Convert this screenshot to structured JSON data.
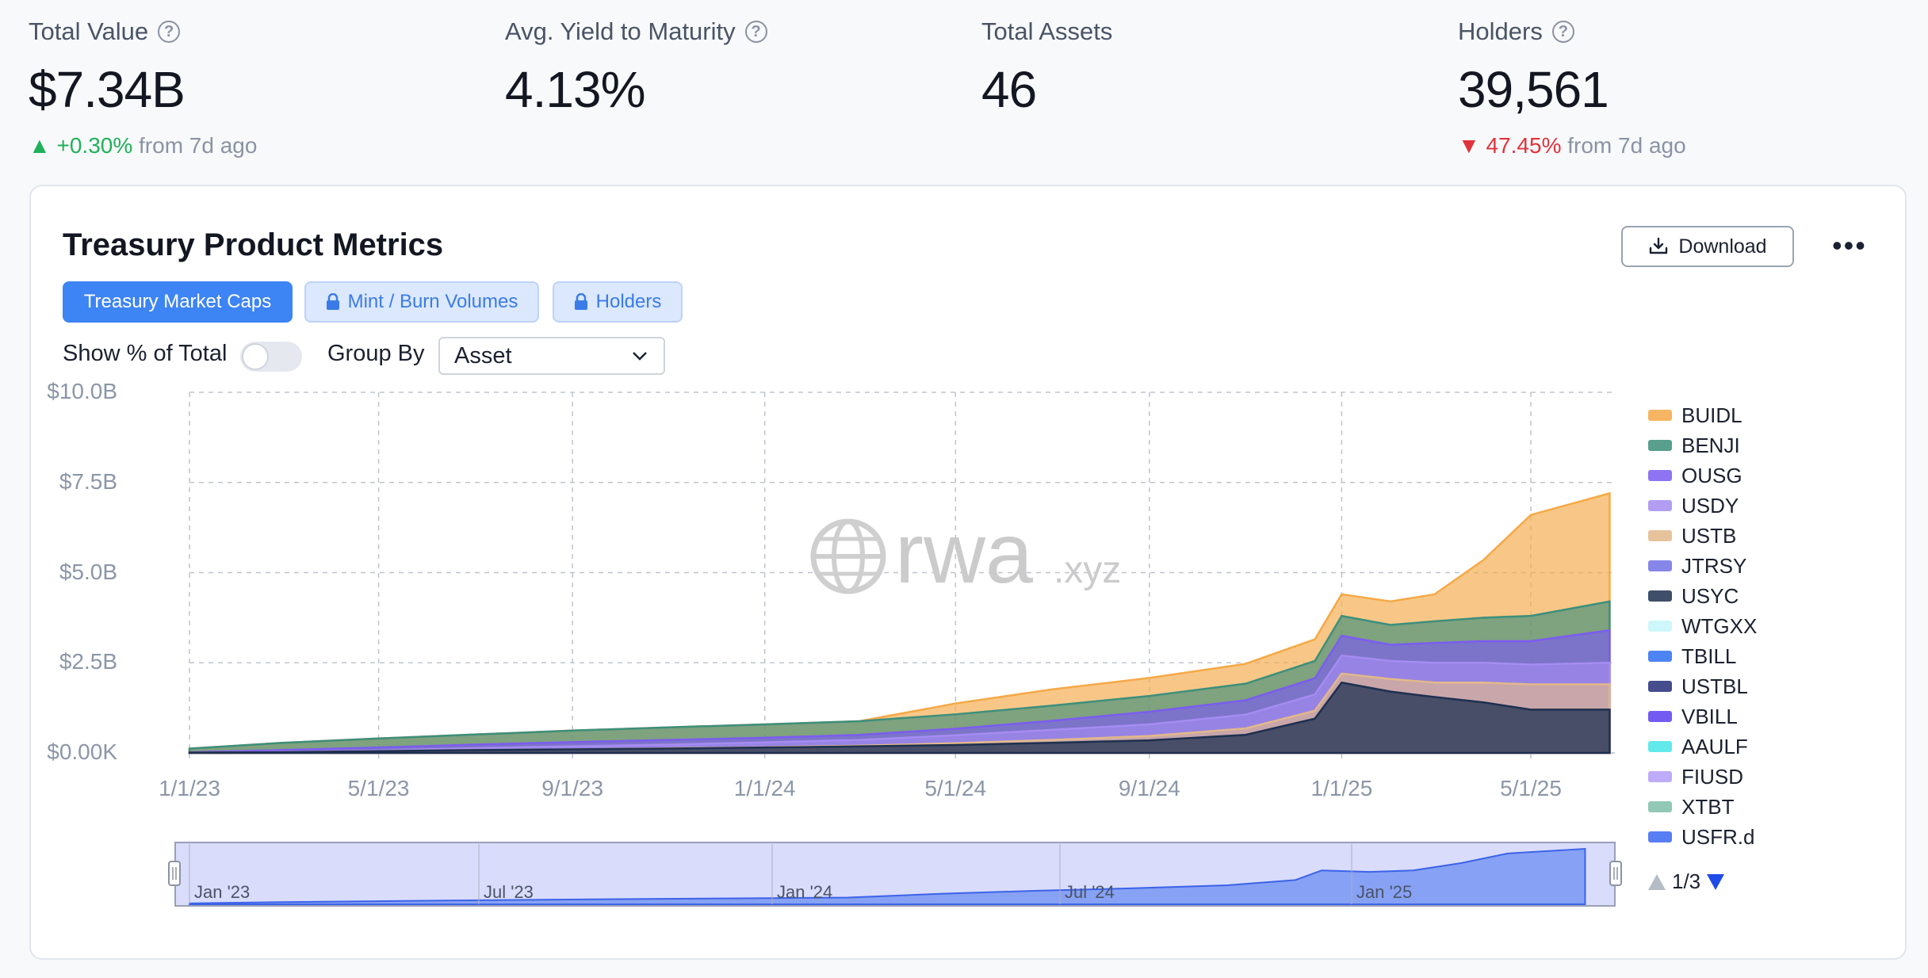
{
  "stats": [
    {
      "label": "Total Value",
      "value": "$7.34B",
      "change": "+0.30%",
      "change_dir": "up",
      "change_suffix": "from 7d ago",
      "has_help": true
    },
    {
      "label": "Avg. Yield to Maturity",
      "value": "4.13%",
      "has_help": true
    },
    {
      "label": "Total Assets",
      "value": "46",
      "has_help": false
    },
    {
      "label": "Holders",
      "value": "39,561",
      "change": "47.45%",
      "change_dir": "down",
      "change_suffix": "from 7d ago",
      "has_help": true
    }
  ],
  "card": {
    "title": "Treasury Product Metrics",
    "download_label": "Download",
    "more_label": "•••",
    "tabs": [
      "Treasury Market Caps",
      "Mint / Burn Volumes",
      "Holders"
    ],
    "show_pct_label": "Show % of Total",
    "group_by_label": "Group By",
    "group_by_value": "Asset",
    "watermark_main": "rwa",
    "watermark_suffix": ".xyz",
    "pager": "1/3",
    "navigator_labels": [
      "Jan '23",
      "Jul '23",
      "Jan '24",
      "Jul '24",
      "Jan '25"
    ]
  },
  "chart_data": {
    "type": "area",
    "stacked": true,
    "x": [
      "1/1/23",
      "3/1/23",
      "5/1/23",
      "7/1/23",
      "9/1/23",
      "11/1/23",
      "1/1/24",
      "3/1/24",
      "5/1/24",
      "7/1/24",
      "9/1/24",
      "11/1/24",
      "12/15/24",
      "1/1/25",
      "2/1/25",
      "3/1/25",
      "4/1/25",
      "5/1/25",
      "6/20/25"
    ],
    "x_tick_labels": [
      "1/1/23",
      "5/1/23",
      "9/1/23",
      "1/1/24",
      "5/1/24",
      "9/1/24",
      "1/1/25",
      "5/1/25"
    ],
    "y_tick_labels": [
      "$0.00K",
      "$2.5B",
      "$5.0B",
      "$7.5B",
      "$10.0B"
    ],
    "ylim": [
      0,
      10
    ],
    "y_unit": "B",
    "grid": true,
    "legend_position": "right",
    "series": [
      {
        "name": "USYC",
        "color": "#1e3050",
        "values": [
          0.01,
          0.02,
          0.05,
          0.08,
          0.1,
          0.12,
          0.15,
          0.18,
          0.22,
          0.28,
          0.35,
          0.5,
          0.95,
          1.95,
          1.7,
          1.55,
          1.4,
          1.2,
          1.2
        ]
      },
      {
        "name": "USTB",
        "color": "#e3b98a",
        "values": [
          0.0,
          0.0,
          0.0,
          0.0,
          0.0,
          0.01,
          0.01,
          0.02,
          0.05,
          0.08,
          0.12,
          0.18,
          0.22,
          0.25,
          0.35,
          0.4,
          0.55,
          0.7,
          0.7
        ]
      },
      {
        "name": "USDY",
        "color": "#a58cf2",
        "values": [
          0.0,
          0.01,
          0.02,
          0.05,
          0.08,
          0.1,
          0.13,
          0.16,
          0.22,
          0.28,
          0.32,
          0.38,
          0.45,
          0.5,
          0.5,
          0.55,
          0.55,
          0.55,
          0.6
        ]
      },
      {
        "name": "OUSG",
        "color": "#7b5cf0",
        "values": [
          0.01,
          0.05,
          0.08,
          0.1,
          0.12,
          0.13,
          0.13,
          0.14,
          0.18,
          0.25,
          0.35,
          0.4,
          0.45,
          0.55,
          0.45,
          0.55,
          0.6,
          0.65,
          0.9
        ]
      },
      {
        "name": "BENJI",
        "color": "#3d8f7b",
        "values": [
          0.1,
          0.2,
          0.25,
          0.28,
          0.32,
          0.35,
          0.37,
          0.38,
          0.4,
          0.42,
          0.44,
          0.46,
          0.48,
          0.55,
          0.55,
          0.6,
          0.65,
          0.7,
          0.8
        ]
      },
      {
        "name": "BUIDL",
        "color": "#f5a947",
        "values": [
          0.0,
          0.0,
          0.0,
          0.0,
          0.0,
          0.0,
          0.0,
          0.0,
          0.3,
          0.45,
          0.5,
          0.55,
          0.6,
          0.6,
          0.65,
          0.75,
          1.6,
          2.8,
          3.0
        ]
      }
    ],
    "legend": [
      {
        "name": "BUIDL",
        "color": "#f5a947"
      },
      {
        "name": "BENJI",
        "color": "#3d8f7b"
      },
      {
        "name": "OUSG",
        "color": "#7b5cf0"
      },
      {
        "name": "USDY",
        "color": "#a58cf2"
      },
      {
        "name": "USTB",
        "color": "#e3b98a"
      },
      {
        "name": "JTRSY",
        "color": "#7272e6"
      },
      {
        "name": "USYC",
        "color": "#1e3050"
      },
      {
        "name": "WTGXX",
        "color": "#c6f6fb"
      },
      {
        "name": "TBILL",
        "color": "#2f6ff2"
      },
      {
        "name": "USTBL",
        "color": "#252e7a"
      },
      {
        "name": "VBILL",
        "color": "#5b3ff0"
      },
      {
        "name": "AAULF",
        "color": "#47e6e6"
      },
      {
        "name": "FIUSD",
        "color": "#b49ef7"
      },
      {
        "name": "XTBT",
        "color": "#7fbfaa"
      },
      {
        "name": "USFR.d",
        "color": "#3b68f2"
      }
    ]
  }
}
